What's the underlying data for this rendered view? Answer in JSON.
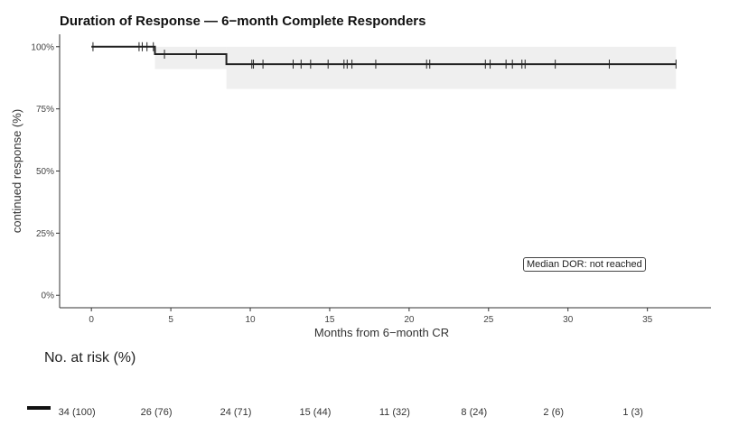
{
  "chart_data": {
    "type": "line",
    "title": "Duration of Response — 6−month Complete Responders",
    "xlabel": "Months from 6−month CR",
    "ylabel": "continued response (%)",
    "xlim": [
      -2,
      39
    ],
    "ylim": [
      -5,
      105
    ],
    "x_ticks": [
      0,
      5,
      10,
      15,
      20,
      25,
      30,
      35
    ],
    "y_ticks": [
      {
        "value": 0,
        "label": "0%"
      },
      {
        "value": 25,
        "label": "25%"
      },
      {
        "value": 50,
        "label": "50%"
      },
      {
        "value": 75,
        "label": "75%"
      },
      {
        "value": 100,
        "label": "100%"
      }
    ],
    "grid": false,
    "series": [
      {
        "points": [
          [
            0,
            100
          ],
          [
            4.0,
            100
          ],
          [
            4.0,
            97
          ],
          [
            8.5,
            97
          ],
          [
            8.5,
            93
          ],
          [
            36.8,
            93
          ]
        ],
        "censor_times": [
          0.1,
          3.0,
          3.2,
          3.5,
          3.9,
          4.6,
          6.6,
          10.1,
          10.2,
          10.8,
          12.7,
          13.2,
          13.8,
          14.9,
          15.9,
          16.1,
          16.4,
          17.9,
          21.1,
          21.3,
          24.8,
          25.1,
          26.1,
          26.5,
          27.1,
          27.3,
          29.2,
          32.6,
          36.8
        ],
        "ci_band": [
          {
            "x0": 0,
            "x1": 4.0,
            "lower": 100,
            "upper": 100
          },
          {
            "x0": 4.0,
            "x1": 8.5,
            "lower": 91,
            "upper": 100
          },
          {
            "x0": 8.5,
            "x1": 36.8,
            "lower": 83,
            "upper": 100
          }
        ],
        "color": "#222222",
        "ci_color": "#efefef"
      }
    ],
    "annotation": "Median DOR: not reached",
    "risk_table": {
      "title": "No. at risk (%)",
      "times": [
        0,
        5,
        10,
        15,
        20,
        25,
        30,
        35
      ],
      "values": [
        "34 (100)",
        "26 (76)",
        "24 (71)",
        "15 (44)",
        "11 (32)",
        "8 (24)",
        "2 (6)",
        "1 (3)"
      ]
    }
  }
}
